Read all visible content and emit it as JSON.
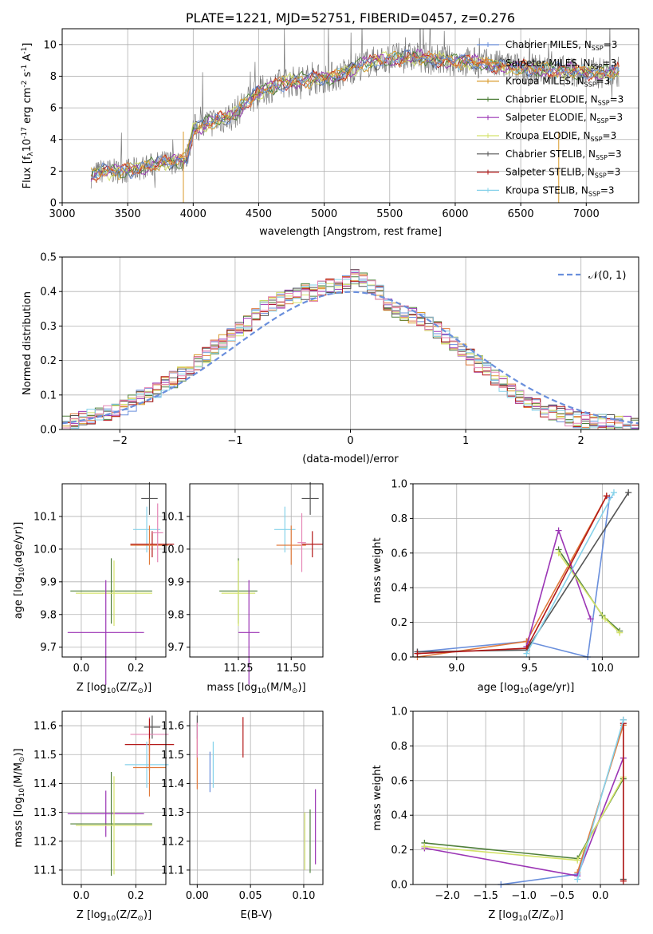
{
  "colors": {
    "Chabrier MILES": "#6a8fdc",
    "Salpeter MILES": "#e07a3c",
    "Kroupa MILES": "#d99a2a",
    "Chabrier ELODIE": "#4f7f3a",
    "Salpeter ELODIE": "#9b35b5",
    "Kroupa ELODIE": "#d4e36a",
    "Chabrier STELIB": "#555555",
    "Salpeter STELIB": "#b31717",
    "Kroupa STELIB": "#86d2ea",
    "Extra": "#e585b5",
    "Gaussian": "#6a8fdc"
  },
  "chart_data": [
    {
      "id": "spectrum",
      "type": "line",
      "title": "PLATE=1221, MJD=52751, FIBERID=0457, z=0.276",
      "xlabel": "wavelength [Angstrom, rest frame]",
      "ylabel": "Flux [f",
      "ylabel_sub": "λ",
      "ylabel_rest": "10",
      "ylabel_exp": "-17",
      "ylabel_units": " erg cm",
      "ylabel_exp2": "-2",
      "ylabel_units2": " s",
      "ylabel_exp3": "-1",
      "ylabel_units3": " A",
      "ylabel_exp4": "-1",
      "ylabel_end": "]",
      "xlim": [
        3000,
        7400
      ],
      "ylim": [
        0,
        11
      ],
      "xticks": [
        3000,
        3500,
        4000,
        4500,
        5000,
        5500,
        6000,
        6500,
        7000
      ],
      "yticks": [
        0,
        2,
        4,
        6,
        8,
        10
      ],
      "legend_placement": "right",
      "legend": [
        {
          "name": "Chabrier MILES, N",
          "sub": "SSP",
          "tail": "=3"
        },
        {
          "name": "Salpeter MILES, N",
          "sub": "SSP",
          "tail": "=3"
        },
        {
          "name": "Kroupa MILES, N",
          "sub": "SSP",
          "tail": "=3"
        },
        {
          "name": "Chabrier ELODIE, N",
          "sub": "SSP",
          "tail": "=3"
        },
        {
          "name": "Salpeter ELODIE, N",
          "sub": "SSP",
          "tail": "=3"
        },
        {
          "name": "Kroupa ELODIE, N",
          "sub": "SSP",
          "tail": "=3"
        },
        {
          "name": "Chabrier STELIB, N",
          "sub": "SSP",
          "tail": "=3"
        },
        {
          "name": "Salpeter STELIB, N",
          "sub": "SSP",
          "tail": "=3"
        },
        {
          "name": "Kroupa STELIB, N",
          "sub": "SSP",
          "tail": "=3"
        }
      ],
      "continuum": {
        "x": [
          3220,
          3300,
          3450,
          3550,
          3650,
          3750,
          3850,
          3950,
          4000,
          4100,
          4300,
          4400,
          4500,
          4700,
          4900,
          5100,
          5300,
          5500,
          5700,
          5900,
          6100,
          6300,
          6500,
          6700,
          6900,
          7100,
          7250
        ],
        "y": [
          1.7,
          2.0,
          2.0,
          2.1,
          2.3,
          2.5,
          2.6,
          2.8,
          4.6,
          5.0,
          5.5,
          6.3,
          7.0,
          7.6,
          7.8,
          8.0,
          8.8,
          9.1,
          9.2,
          9.0,
          8.9,
          8.7,
          8.5,
          8.4,
          8.3,
          8.2,
          8.3
        ]
      }
    },
    {
      "id": "residuals",
      "type": "histogram",
      "xlabel": "(data-model)/error",
      "ylabel": "Normed distribution",
      "xlim": [
        -2.5,
        2.5
      ],
      "ylim": [
        0,
        0.5
      ],
      "xticks": [
        -2,
        -1,
        0,
        1,
        2
      ],
      "xtick_labels": [
        "−2",
        "−1",
        "0",
        "1",
        "2"
      ],
      "yticks": [
        0.0,
        0.1,
        0.2,
        0.3,
        0.4,
        0.5
      ],
      "ytick_labels": [
        "0.0",
        "0.1",
        "0.2",
        "0.3",
        "0.4",
        "0.5"
      ],
      "legend": [
        {
          "name": "𝒩(0, 1)"
        }
      ],
      "legend_placement": "top-right",
      "bin_width": 0.1,
      "base": [
        0.02,
        0.025,
        0.03,
        0.035,
        0.04,
        0.045,
        0.055,
        0.065,
        0.075,
        0.09,
        0.1,
        0.115,
        0.13,
        0.145,
        0.16,
        0.18,
        0.195,
        0.215,
        0.235,
        0.255,
        0.27,
        0.29,
        0.31,
        0.33,
        0.35,
        0.36,
        0.375,
        0.385,
        0.39,
        0.4,
        0.395,
        0.41,
        0.415,
        0.42,
        0.43,
        0.44,
        0.43,
        0.42,
        0.4,
        0.37,
        0.35,
        0.34,
        0.33,
        0.32,
        0.305,
        0.29,
        0.27,
        0.25,
        0.235,
        0.21,
        0.19,
        0.17,
        0.15,
        0.13,
        0.115,
        0.1,
        0.085,
        0.07,
        0.06,
        0.05,
        0.045,
        0.035,
        0.03,
        0.025,
        0.02,
        0.02,
        0.02,
        0.015,
        0.015,
        0.015
      ]
    },
    {
      "id": "age_vs_Z",
      "type": "errorbar",
      "xlabel": "Z [log",
      "xlabel_sub": "10",
      "xlabel_rest": "(Z/Z",
      "xlabel_sub2": "⊙",
      "xlabel_end": ")]",
      "ylabel": "age  [log",
      "ylabel_sub": "10",
      "ylabel_rest": "(age/yr)]",
      "xlim": [
        -0.07,
        0.31
      ],
      "ylim": [
        9.67,
        10.2
      ],
      "xticks": [
        0.0,
        0.2
      ],
      "xtick_labels": [
        "0.0",
        "0.2"
      ],
      "yticks": [
        9.7,
        9.8,
        9.9,
        10.0,
        10.1
      ],
      "ytick_labels": [
        "9.7",
        "9.8",
        "9.9",
        "10.0",
        "10.1"
      ],
      "points": [
        {
          "series": "Chabrier STELIB",
          "x": 0.25,
          "xerr": 0.03,
          "y": 10.155,
          "yerr": 0.05
        },
        {
          "series": "Kroupa STELIB",
          "x": 0.24,
          "xerr": 0.05,
          "y": 10.06,
          "yerr": 0.07
        },
        {
          "series": "Salpeter STELIB",
          "x": 0.26,
          "xerr": 0.08,
          "y": 10.015,
          "yerr": 0.04
        },
        {
          "series": "Salpeter MILES",
          "x": 0.25,
          "xerr": 0.07,
          "y": 10.012,
          "yerr": 0.06
        },
        {
          "series": "Extra",
          "x": 0.28,
          "xerr": 0.02,
          "y": 10.05,
          "yerr": 0.09
        },
        {
          "series": "Chabrier ELODIE",
          "x": 0.11,
          "xerr": 0.15,
          "y": 9.872,
          "yerr": 0.1
        },
        {
          "series": "Kroupa ELODIE",
          "x": 0.12,
          "xerr": 0.14,
          "y": 9.865,
          "yerr": 0.1
        },
        {
          "series": "Salpeter ELODIE",
          "x": 0.09,
          "xerr": 0.14,
          "y": 9.745,
          "yerr": 0.16
        }
      ]
    },
    {
      "id": "age_vs_mass",
      "type": "errorbar",
      "xlabel": "mass [log",
      "xlabel_sub": "10",
      "xlabel_rest": "(M/M",
      "xlabel_sub2": "⊙",
      "xlabel_end": ")]",
      "xlim": [
        11.02,
        11.65
      ],
      "ylim": [
        9.67,
        10.2
      ],
      "xticks": [
        11.25,
        11.5
      ],
      "xtick_labels": [
        "11.25",
        "11.50"
      ],
      "yticks": [
        9.7,
        9.8,
        9.9,
        10.0,
        10.1
      ],
      "ytick_labels": [
        "9.7",
        "9.8",
        "9.9",
        "10.0",
        "10.1"
      ],
      "points": [
        {
          "series": "Chabrier STELIB",
          "x": 11.59,
          "xerr": 0.04,
          "y": 10.155,
          "yerr": 0.05
        },
        {
          "series": "Kroupa STELIB",
          "x": 11.47,
          "xerr": 0.05,
          "y": 10.06,
          "yerr": 0.07
        },
        {
          "series": "Salpeter STELIB",
          "x": 11.6,
          "xerr": 0.05,
          "y": 10.015,
          "yerr": 0.04
        },
        {
          "series": "Salpeter MILES",
          "x": 11.5,
          "xerr": 0.07,
          "y": 10.012,
          "yerr": 0.06
        },
        {
          "series": "Extra",
          "x": 11.55,
          "xerr": 0.02,
          "y": 10.02,
          "yerr": 0.09
        },
        {
          "series": "Chabrier ELODIE",
          "x": 11.25,
          "xerr": 0.09,
          "y": 9.872,
          "yerr": 0.1
        },
        {
          "series": "Kroupa ELODIE",
          "x": 11.25,
          "xerr": 0.08,
          "y": 9.865,
          "yerr": 0.1
        },
        {
          "series": "Salpeter ELODIE",
          "x": 11.3,
          "xerr": 0.05,
          "y": 9.745,
          "yerr": 0.16
        }
      ]
    },
    {
      "id": "mw_vs_age",
      "type": "line",
      "xlabel": "age  [log",
      "xlabel_sub": "10",
      "xlabel_rest": "(age/yr)]",
      "ylabel": "mass weight",
      "xlim": [
        8.7,
        10.25
      ],
      "ylim": [
        0,
        1
      ],
      "xticks": [
        9.0,
        9.5,
        10.0
      ],
      "xtick_labels": [
        "9.0",
        "9.5",
        "10.0"
      ],
      "yticks": [
        0,
        0.2,
        0.4,
        0.6,
        0.8,
        1.0
      ],
      "ytick_labels": [
        "0.0",
        "0.2",
        "0.4",
        "0.6",
        "0.8",
        "1.0"
      ],
      "series": [
        {
          "name": "Chabrier MILES",
          "x": [
            8.73,
            9.48,
            9.9,
            10.05
          ],
          "y": [
            0.03,
            0.09,
            0.0,
            0.92
          ]
        },
        {
          "name": "Salpeter MILES",
          "x": [
            8.73,
            9.48,
            10.03
          ],
          "y": [
            0.0,
            0.09,
            0.93
          ]
        },
        {
          "name": "Chabrier ELODIE",
          "x": [
            9.7,
            10.0,
            10.12
          ],
          "y": [
            0.62,
            0.24,
            0.15
          ]
        },
        {
          "name": "Salpeter ELODIE",
          "x": [
            9.48,
            9.7,
            9.92
          ],
          "y": [
            0.06,
            0.73,
            0.22
          ]
        },
        {
          "name": "Kroupa ELODIE",
          "x": [
            9.7,
            10.02,
            10.12
          ],
          "y": [
            0.6,
            0.22,
            0.14
          ]
        },
        {
          "name": "Chabrier STELIB",
          "x": [
            8.73,
            9.48,
            10.18
          ],
          "y": [
            0.03,
            0.04,
            0.95
          ]
        },
        {
          "name": "Salpeter STELIB",
          "x": [
            8.73,
            9.48,
            10.03
          ],
          "y": [
            0.02,
            0.05,
            0.93
          ]
        },
        {
          "name": "Kroupa STELIB",
          "x": [
            9.48,
            10.08
          ],
          "y": [
            0.02,
            0.95
          ]
        }
      ]
    },
    {
      "id": "mass_vs_Z",
      "type": "errorbar",
      "xlabel": "Z [log",
      "xlabel_sub": "10",
      "xlabel_rest": "(Z/Z",
      "xlabel_sub2": "⊙",
      "xlabel_end": ")]",
      "ylabel": "mass [log",
      "ylabel_sub": "10",
      "ylabel_rest": "(M/M",
      "ylabel_sub2": "⊙",
      "ylabel_end": ")]",
      "xlim": [
        -0.07,
        0.31
      ],
      "ylim": [
        11.05,
        11.65
      ],
      "xticks": [
        0.0,
        0.2
      ],
      "xtick_labels": [
        "0.0",
        "0.2"
      ],
      "yticks": [
        11.1,
        11.2,
        11.3,
        11.4,
        11.5,
        11.6
      ],
      "ytick_labels": [
        "11.1",
        "11.2",
        "11.3",
        "11.4",
        "11.5",
        "11.6"
      ],
      "points": [
        {
          "series": "Chabrier STELIB",
          "x": 0.26,
          "xerr": 0.03,
          "y": 11.595,
          "yerr": 0.04
        },
        {
          "series": "Extra",
          "x": 0.25,
          "xerr": 0.07,
          "y": 11.57,
          "yerr": 0.06
        },
        {
          "series": "Salpeter STELIB",
          "x": 0.25,
          "xerr": 0.09,
          "y": 11.535,
          "yerr": 0.09
        },
        {
          "series": "Kroupa STELIB",
          "x": 0.24,
          "xerr": 0.08,
          "y": 11.465,
          "yerr": 0.08
        },
        {
          "series": "Salpeter MILES",
          "x": 0.25,
          "xerr": 0.06,
          "y": 11.455,
          "yerr": 0.1
        },
        {
          "series": "Salpeter ELODIE",
          "x": 0.09,
          "xerr": 0.14,
          "y": 11.295,
          "yerr": 0.08
        },
        {
          "series": "Chabrier ELODIE",
          "x": 0.11,
          "xerr": 0.15,
          "y": 11.26,
          "yerr": 0.18
        },
        {
          "series": "Kroupa ELODIE",
          "x": 0.12,
          "xerr": 0.14,
          "y": 11.255,
          "yerr": 0.17
        }
      ]
    },
    {
      "id": "mass_vs_ebv",
      "type": "errorbar",
      "xlabel": "E(B-V)",
      "xlim": [
        -0.007,
        0.118
      ],
      "ylim": [
        11.05,
        11.65
      ],
      "xticks": [
        0.0,
        0.05,
        0.1
      ],
      "xtick_labels": [
        "0.00",
        "0.05",
        "0.10"
      ],
      "yticks": [
        11.1,
        11.2,
        11.3,
        11.4,
        11.5,
        11.6
      ],
      "ytick_labels": [
        "11.1",
        "11.2",
        "11.3",
        "11.4",
        "11.5",
        "11.6"
      ],
      "points": [
        {
          "series": "Chabrier STELIB",
          "x": 0.0,
          "y": 11.595,
          "yerr": 0.04
        },
        {
          "series": "Salpeter MILES",
          "x": 0.0,
          "y": 11.47,
          "yerr": 0.09
        },
        {
          "series": "Extra",
          "x": 0.0,
          "y": 11.55,
          "yerr": 0.06
        },
        {
          "series": "Chabrier MILES",
          "x": 0.012,
          "y": 11.44,
          "yerr": 0.07
        },
        {
          "series": "Kroupa STELIB",
          "x": 0.015,
          "y": 11.465,
          "yerr": 0.08
        },
        {
          "series": "Salpeter STELIB",
          "x": 0.043,
          "y": 11.56,
          "yerr": 0.07
        },
        {
          "series": "Kroupa ELODIE",
          "x": 0.101,
          "y": 11.2,
          "yerr": 0.1
        },
        {
          "series": "Chabrier ELODIE",
          "x": 0.106,
          "y": 11.2,
          "yerr": 0.11
        },
        {
          "series": "Salpeter ELODIE",
          "x": 0.111,
          "y": 11.25,
          "yerr": 0.13
        }
      ]
    },
    {
      "id": "mw_vs_Z",
      "type": "line",
      "xlabel": "Z [log",
      "xlabel_sub": "10",
      "xlabel_rest": "(Z/Z",
      "xlabel_sub2": "⊙",
      "xlabel_end": ")]",
      "ylabel": "mass weight",
      "xlim": [
        -2.45,
        0.5
      ],
      "ylim": [
        0,
        1
      ],
      "xticks": [
        -2.0,
        -1.5,
        -1.0,
        -0.5,
        0.0
      ],
      "xtick_labels": [
        "−2.0",
        "−1.5",
        "−1.0",
        "−0.5",
        "0.0"
      ],
      "yticks": [
        0,
        0.2,
        0.4,
        0.6,
        0.8,
        1.0
      ],
      "ytick_labels": [
        "0.0",
        "0.2",
        "0.4",
        "0.6",
        "0.8",
        "1.0"
      ],
      "series": [
        {
          "name": "Chabrier MILES",
          "x": [
            -1.3,
            -0.3,
            0.3
          ],
          "y": [
            0.0,
            0.06,
            0.93
          ]
        },
        {
          "name": "Salpeter MILES",
          "x": [
            -0.3,
            0.3
          ],
          "y": [
            0.07,
            0.92
          ]
        },
        {
          "name": "Chabrier ELODIE",
          "x": [
            -2.3,
            -0.3,
            0.3
          ],
          "y": [
            0.24,
            0.15,
            0.61
          ]
        },
        {
          "name": "Salpeter ELODIE",
          "x": [
            -2.3,
            -0.3,
            0.3
          ],
          "y": [
            0.21,
            0.05,
            0.73
          ]
        },
        {
          "name": "Kroupa ELODIE",
          "x": [
            -2.3,
            -0.3,
            0.3
          ],
          "y": [
            0.22,
            0.14,
            0.62
          ]
        },
        {
          "name": "Chabrier STELIB",
          "x": [
            0.3,
            0.3
          ],
          "y": [
            0.03,
            0.95
          ]
        },
        {
          "name": "Salpeter STELIB",
          "x": [
            0.3,
            0.3
          ],
          "y": [
            0.02,
            0.93
          ]
        },
        {
          "name": "Kroupa STELIB",
          "x": [
            -0.3,
            0.3
          ],
          "y": [
            0.03,
            0.95
          ]
        }
      ]
    }
  ]
}
